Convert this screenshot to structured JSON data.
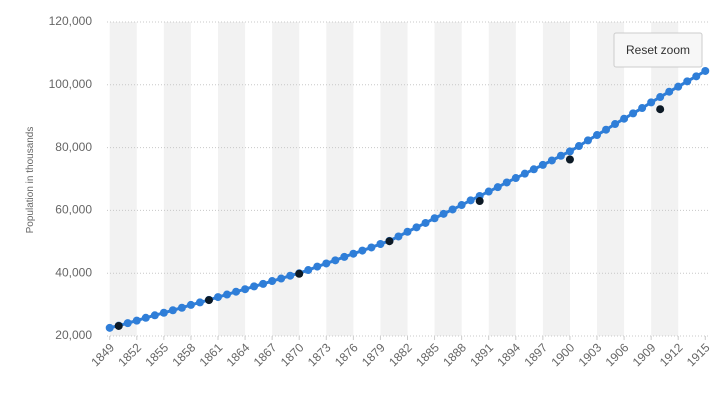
{
  "chart_data": {
    "type": "line",
    "y_axis_title": "Population in thousands",
    "xlim": [
      1848.7,
      1915.3
    ],
    "xticks": [
      1849,
      1852,
      1855,
      1858,
      1861,
      1864,
      1867,
      1870,
      1873,
      1876,
      1879,
      1882,
      1885,
      1888,
      1891,
      1894,
      1897,
      1900,
      1903,
      1906,
      1909,
      1912,
      1915
    ],
    "ylim": [
      20000,
      120000
    ],
    "yticks": [
      {
        "value": 20000,
        "label": "20,000"
      },
      {
        "value": 40000,
        "label": "40,000"
      },
      {
        "value": 60000,
        "label": "60,000"
      },
      {
        "value": 80000,
        "label": "80,000"
      },
      {
        "value": 100000,
        "label": "100,000"
      },
      {
        "value": 120000,
        "label": "120,000"
      }
    ],
    "grid": true,
    "series": [
      {
        "type": "line",
        "color": "#2f7ed8",
        "x": [
          1849,
          1850,
          1851,
          1852,
          1853,
          1854,
          1855,
          1856,
          1857,
          1858,
          1859,
          1860,
          1861,
          1862,
          1863,
          1864,
          1865,
          1866,
          1867,
          1868,
          1869,
          1870,
          1871,
          1872,
          1873,
          1874,
          1875,
          1876,
          1877,
          1878,
          1879,
          1880,
          1881,
          1882,
          1883,
          1884,
          1885,
          1886,
          1887,
          1888,
          1889,
          1890,
          1891,
          1892,
          1893,
          1894,
          1895,
          1896,
          1897,
          1898,
          1899,
          1900,
          1901,
          1902,
          1903,
          1904,
          1905,
          1906,
          1907,
          1908,
          1909,
          1910,
          1911,
          1912,
          1913,
          1914,
          1915
        ],
        "values": [
          22600,
          23300,
          24100,
          24900,
          25800,
          26600,
          27400,
          28200,
          29000,
          29900,
          30700,
          31500,
          32400,
          33200,
          34100,
          34900,
          35800,
          36600,
          37500,
          38300,
          39200,
          40000,
          41000,
          42100,
          43100,
          44100,
          45200,
          46200,
          47200,
          48200,
          49300,
          50300,
          51700,
          53200,
          54600,
          56000,
          57500,
          58900,
          60300,
          61700,
          63200,
          64600,
          66000,
          67400,
          68900,
          70300,
          71700,
          73100,
          74500,
          75900,
          77400,
          78800,
          80500,
          82300,
          84000,
          85700,
          87500,
          89200,
          90900,
          92600,
          94400,
          96100,
          97800,
          99400,
          101100,
          102700,
          104400
        ]
      },
      {
        "type": "scatter",
        "color": "#0d1a26",
        "x": [
          1850,
          1860,
          1870,
          1880,
          1890,
          1900,
          1910
        ],
        "values": [
          23192,
          31443,
          39818,
          50189,
          62980,
          76212,
          92228
        ]
      }
    ]
  },
  "reset_zoom_button": "Reset zoom"
}
